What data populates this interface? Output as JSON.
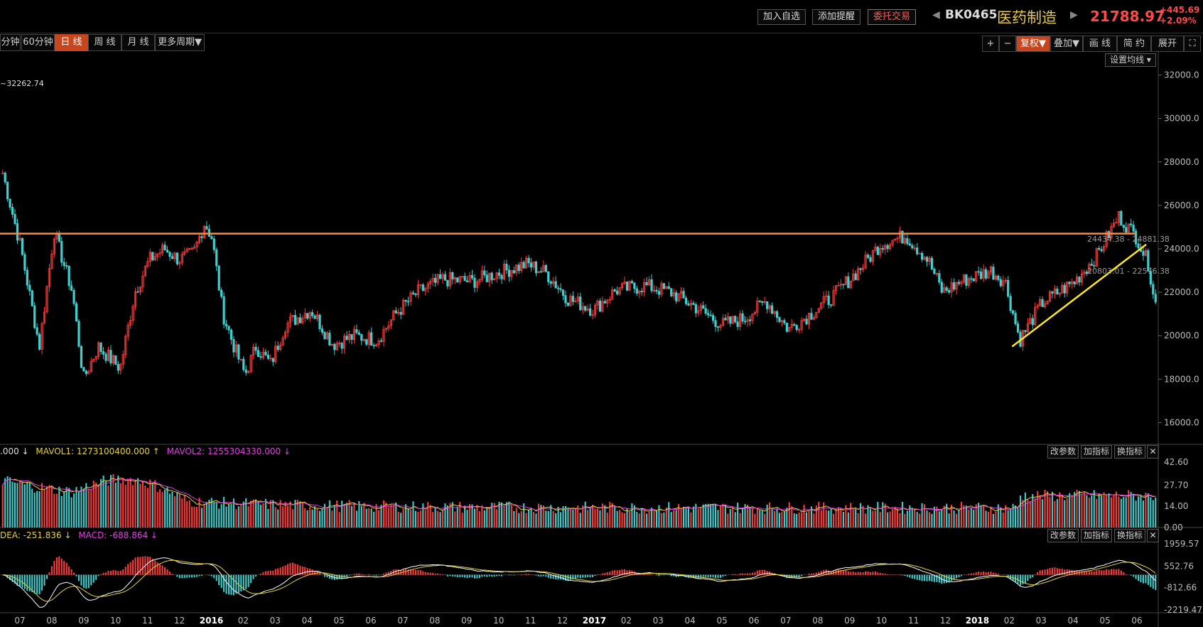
{
  "toolbar": {
    "add_watch": "加入自选",
    "add_alert": "添加提醒",
    "trade": "委托交易",
    "code": "BK0465",
    "name": "医药制造",
    "price": "21788.97",
    "change": "+445.69",
    "change_pct": "+2.09%"
  },
  "periods": [
    "分钟",
    "60分钟",
    "日 线",
    "周 线",
    "月 线",
    "更多周期▼"
  ],
  "active_period": 2,
  "right_tools": [
    "+",
    "−",
    "复权▼",
    "叠加▼",
    "画 线",
    "简 约",
    "展开",
    "⛶"
  ],
  "ma_settings": "设置均线 ▾",
  "indicator_buttons": [
    "改参数",
    "加指标",
    "换指标"
  ],
  "vol_indicator": {
    "prefix": ".000 ↓",
    "mavol1": "MAVOL1: 1273100400.000 ↑",
    "mavol2": "MAVOL2: 1255304330.000 ↓"
  },
  "macd_indicator": {
    "dea": "DEA: -251.836 ↓",
    "macd": "MACD: -688.864 ↓"
  },
  "chart_data": {
    "type": "candlestick",
    "max_label": "~32262.74",
    "annotations": [
      "24434.38 - 24881.38",
      "20803.01 - 22576.38"
    ],
    "price_axis": [
      "32000.0",
      "30000.0",
      "28000.0",
      "26000.0",
      "24000.0",
      "22000.0",
      "20000.0",
      "18000.0",
      "16000.0"
    ],
    "ylim": [
      15000,
      33000
    ],
    "resistance_level": 24700,
    "trend_line": {
      "from": [
        "2018-02",
        19500
      ],
      "to": [
        "2018-05",
        24200
      ]
    },
    "x_ticks": [
      "07",
      "08",
      "09",
      "10",
      "11",
      "12",
      "2016",
      "02",
      "03",
      "04",
      "05",
      "06",
      "07",
      "08",
      "09",
      "10",
      "11",
      "12",
      "2017",
      "02",
      "03",
      "04",
      "05",
      "06",
      "07",
      "08",
      "09",
      "10",
      "11",
      "12",
      "2018",
      "02",
      "03",
      "04",
      "05",
      "06"
    ],
    "anchors": [
      [
        0,
        27500
      ],
      [
        0.5,
        24000
      ],
      [
        1,
        19500
      ],
      [
        1.4,
        24800
      ],
      [
        1.9,
        22000
      ],
      [
        2.2,
        18000
      ],
      [
        2.6,
        19500
      ],
      [
        3.2,
        18500
      ],
      [
        3.6,
        22000
      ],
      [
        4.0,
        23500
      ],
      [
        4.4,
        24000
      ],
      [
        4.8,
        23500
      ],
      [
        5.2,
        23800
      ],
      [
        5.5,
        25200
      ],
      [
        5.7,
        24500
      ],
      [
        6.0,
        21000
      ],
      [
        6.3,
        19500
      ],
      [
        6.6,
        18200
      ],
      [
        6.9,
        19500
      ],
      [
        7.3,
        18700
      ],
      [
        7.7,
        20500
      ],
      [
        8.4,
        21200
      ],
      [
        9.0,
        19600
      ],
      [
        9.6,
        20000
      ],
      [
        10.2,
        19800
      ],
      [
        10.7,
        21000
      ],
      [
        11.3,
        22000
      ],
      [
        12.0,
        22600
      ],
      [
        12.8,
        22500
      ],
      [
        13.5,
        22900
      ],
      [
        14.3,
        23300
      ],
      [
        14.8,
        22900
      ],
      [
        15.4,
        21700
      ],
      [
        16.1,
        21200
      ],
      [
        16.7,
        22100
      ],
      [
        17.5,
        22300
      ],
      [
        18.2,
        22000
      ],
      [
        18.8,
        21400
      ],
      [
        19.6,
        20500
      ],
      [
        20.2,
        20800
      ],
      [
        20.8,
        21600
      ],
      [
        21.4,
        20300
      ],
      [
        22.0,
        21000
      ],
      [
        22.6,
        21800
      ],
      [
        23.3,
        23000
      ],
      [
        23.9,
        24200
      ],
      [
        24.6,
        24600
      ],
      [
        25.2,
        23500
      ],
      [
        25.6,
        22000
      ],
      [
        26.1,
        22500
      ],
      [
        26.9,
        23000
      ],
      [
        27.3,
        22500
      ],
      [
        27.7,
        19800
      ],
      [
        28.3,
        21500
      ],
      [
        29.2,
        22500
      ],
      [
        29.8,
        23700
      ],
      [
        30.4,
        25500
      ],
      [
        30.9,
        24500
      ],
      [
        31.2,
        23300
      ],
      [
        31.4,
        21500
      ]
    ],
    "volume_axis": [
      "42.60",
      "27.70",
      "14.00",
      "0.00"
    ],
    "volume_ylim": [
      0,
      45
    ],
    "macd_axis": [
      "1959.57",
      "552.76",
      "-812.66",
      "-2219.47"
    ],
    "macd_ylim": [
      -2400,
      2100
    ]
  }
}
